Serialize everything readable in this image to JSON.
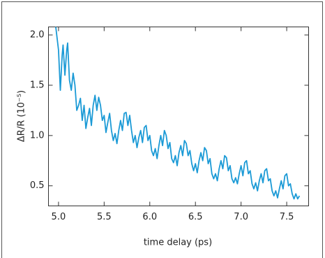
{
  "chart_data": {
    "type": "line",
    "x_label": "time delay (ps)",
    "y_label": "ΔR/R (10⁻⁵)",
    "x": [
      4.97,
      5.0,
      5.02,
      5.04,
      5.05,
      5.07,
      5.09,
      5.1,
      5.12,
      5.14,
      5.16,
      5.18,
      5.2,
      5.22,
      5.24,
      5.26,
      5.28,
      5.3,
      5.32,
      5.34,
      5.36,
      5.38,
      5.4,
      5.42,
      5.44,
      5.46,
      5.48,
      5.5,
      5.52,
      5.54,
      5.56,
      5.58,
      5.6,
      5.62,
      5.64,
      5.66,
      5.68,
      5.7,
      5.72,
      5.74,
      5.76,
      5.78,
      5.8,
      5.82,
      5.84,
      5.86,
      5.88,
      5.9,
      5.92,
      5.94,
      5.96,
      5.98,
      6.0,
      6.02,
      6.04,
      6.06,
      6.08,
      6.1,
      6.12,
      6.14,
      6.16,
      6.18,
      6.2,
      6.22,
      6.24,
      6.26,
      6.28,
      6.3,
      6.32,
      6.34,
      6.36,
      6.38,
      6.4,
      6.42,
      6.44,
      6.46,
      6.48,
      6.5,
      6.52,
      6.54,
      6.56,
      6.58,
      6.6,
      6.62,
      6.64,
      6.66,
      6.68,
      6.7,
      6.72,
      6.74,
      6.76,
      6.78,
      6.8,
      6.82,
      6.84,
      6.86,
      6.88,
      6.9,
      6.92,
      6.94,
      6.96,
      6.98,
      7.0,
      7.02,
      7.04,
      7.06,
      7.08,
      7.1,
      7.12,
      7.14,
      7.16,
      7.18,
      7.2,
      7.22,
      7.24,
      7.26,
      7.28,
      7.3,
      7.32,
      7.34,
      7.36,
      7.38,
      7.4,
      7.42,
      7.44,
      7.46,
      7.48,
      7.5,
      7.52,
      7.54,
      7.56,
      7.58,
      7.6,
      7.62,
      7.64
    ],
    "series": [
      {
        "color": "#1b9ad6",
        "values": [
          2.08,
          1.85,
          1.45,
          1.8,
          1.9,
          1.6,
          1.85,
          1.92,
          1.55,
          1.45,
          1.62,
          1.5,
          1.25,
          1.3,
          1.37,
          1.15,
          1.3,
          1.07,
          1.18,
          1.27,
          1.1,
          1.3,
          1.4,
          1.25,
          1.38,
          1.3,
          1.15,
          1.2,
          1.03,
          1.13,
          1.22,
          1.05,
          0.95,
          1.02,
          0.92,
          1.05,
          1.15,
          1.05,
          1.22,
          1.23,
          1.1,
          1.2,
          1.05,
          0.93,
          1.0,
          0.88,
          0.98,
          1.05,
          0.93,
          1.08,
          1.1,
          0.95,
          1.0,
          0.85,
          0.8,
          0.87,
          0.77,
          0.9,
          1.0,
          0.9,
          1.05,
          1.0,
          0.87,
          0.93,
          0.77,
          0.73,
          0.8,
          0.7,
          0.83,
          0.9,
          0.8,
          0.95,
          0.92,
          0.8,
          0.85,
          0.72,
          0.65,
          0.72,
          0.63,
          0.75,
          0.83,
          0.75,
          0.88,
          0.85,
          0.72,
          0.77,
          0.62,
          0.57,
          0.62,
          0.55,
          0.67,
          0.75,
          0.67,
          0.8,
          0.78,
          0.65,
          0.7,
          0.57,
          0.53,
          0.58,
          0.52,
          0.62,
          0.7,
          0.6,
          0.73,
          0.75,
          0.62,
          0.65,
          0.52,
          0.47,
          0.53,
          0.45,
          0.55,
          0.62,
          0.53,
          0.65,
          0.67,
          0.55,
          0.57,
          0.45,
          0.4,
          0.45,
          0.38,
          0.47,
          0.55,
          0.47,
          0.6,
          0.62,
          0.5,
          0.52,
          0.42,
          0.37,
          0.42,
          0.37,
          0.4
        ]
      }
    ],
    "xlim": [
      4.89,
      7.74
    ],
    "ylim": [
      0.3,
      2.08
    ],
    "xticks": [
      {
        "value": 5,
        "label": "5.0"
      },
      5.5,
      {
        "value": 6,
        "label": "6.0"
      },
      6.5,
      {
        "value": 7,
        "label": "7.0"
      },
      7.5
    ],
    "yticks": [
      0.5,
      {
        "value": 1,
        "label": "1.0"
      },
      1.5,
      {
        "value": 2,
        "label": "2.0"
      }
    ]
  }
}
